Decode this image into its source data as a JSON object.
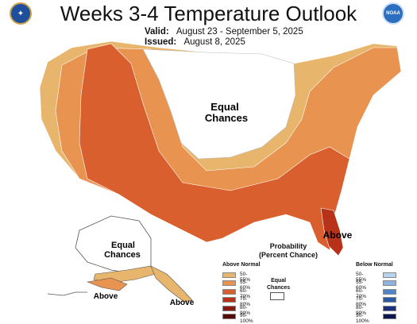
{
  "header": {
    "title": "Weeks 3-4 Temperature Outlook",
    "valid_label": "Valid:",
    "valid_value": "August 23 - September 5, 2025",
    "issued_label": "Issued:",
    "issued_value": "August 8, 2025",
    "noaa_text": "NOAA"
  },
  "map_labels": {
    "equal_chances_conus_line1": "Equal",
    "equal_chances_conus_line2": "Chances",
    "equal_chances_ak_line1": "Equal",
    "equal_chances_ak_line2": "Chances",
    "above_florida": "Above",
    "above_ak_south": "Above",
    "above_ak_se": "Above"
  },
  "colors": {
    "cat_50_55": "#e8b56c",
    "cat_55_60": "#e89450",
    "cat_60_70": "#d9602e",
    "cat_70_80": "#b8321a",
    "cat_80_90": "#8a1a10",
    "cat_90_100": "#5a0a06",
    "below_50_55": "#b9d3ee",
    "below_55_60": "#8fb3e0",
    "below_60_70": "#4f86c9",
    "below_70_80": "#2a5aa8",
    "below_80_90": "#1a2f80",
    "below_90_100": "#0c1550"
  },
  "legend": {
    "title_line1": "Probability",
    "title_line2": "(Percent Chance)",
    "above_header": "Above Normal",
    "below_header": "Below Normal",
    "equal_line1": "Equal",
    "equal_line2": "Chances",
    "above_rows": [
      "50-55%",
      "55-60%",
      "60-70%",
      "70-80%",
      "80-90%",
      "90-100%"
    ],
    "below_rows": [
      "50-55%",
      "55-60%",
      "60-70%",
      "70-80%",
      "80-90%",
      "90-100%"
    ]
  }
}
